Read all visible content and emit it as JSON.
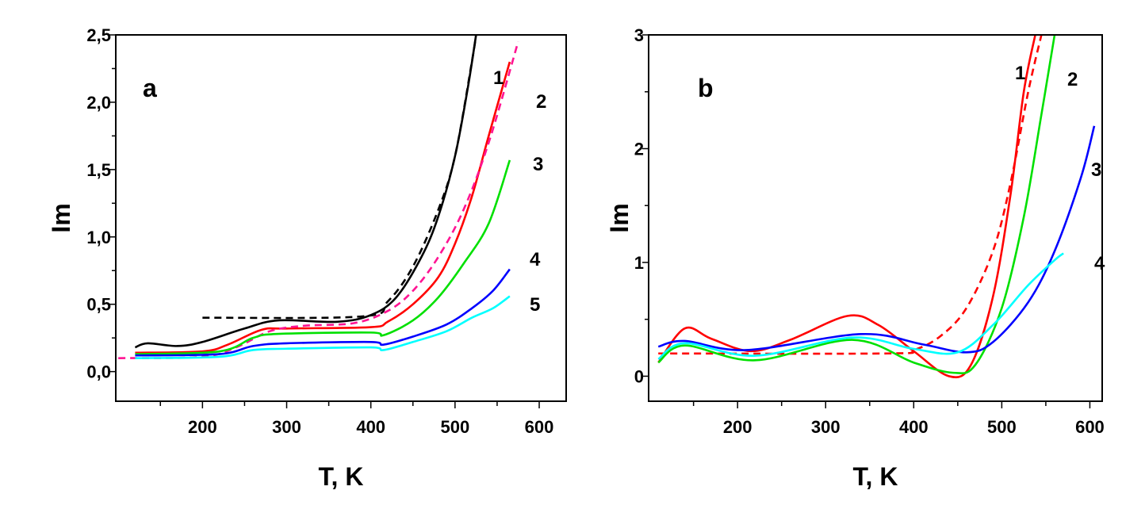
{
  "chart_data": [
    {
      "type": "line",
      "panel_label": "a",
      "xlabel": "T, K",
      "ylabel": "Im",
      "xlim": [
        97,
        632
      ],
      "ylim": [
        -0.22,
        2.5
      ],
      "xticks": [
        200,
        300,
        400,
        500,
        600
      ],
      "xtick_labels": [
        "200",
        "300",
        "400",
        "500",
        "600"
      ],
      "yticks": [
        0.0,
        0.5,
        1.0,
        1.5,
        2.0,
        2.5
      ],
      "ytick_labels": [
        "0,0",
        "0,5",
        "1,0",
        "1,5",
        "2,0",
        "2,5"
      ],
      "grid": false,
      "series": [
        {
          "label": "1",
          "color": "#000000",
          "style": "solid",
          "x": [
            120,
            135,
            170,
            200,
            250,
            290,
            360,
            400,
            430,
            460,
            480,
            500,
            515,
            525
          ],
          "y": [
            0.18,
            0.21,
            0.19,
            0.22,
            0.32,
            0.38,
            0.37,
            0.42,
            0.55,
            0.85,
            1.15,
            1.6,
            2.1,
            2.5
          ]
        },
        {
          "color": "#000000",
          "style": "dashed",
          "x": [
            200,
            390,
            420,
            450,
            480,
            500,
            520,
            525
          ],
          "y": [
            0.4,
            0.41,
            0.52,
            0.78,
            1.2,
            1.6,
            2.3,
            2.5
          ]
        },
        {
          "label": "2",
          "color": "#ff0000",
          "style": "solid",
          "x": [
            120,
            200,
            230,
            270,
            300,
            400,
            420,
            450,
            480,
            500,
            520,
            540,
            565
          ],
          "y": [
            0.14,
            0.15,
            0.2,
            0.31,
            0.32,
            0.33,
            0.37,
            0.5,
            0.7,
            0.95,
            1.3,
            1.75,
            2.3
          ]
        },
        {
          "color": "#ff1493",
          "style": "dashed",
          "x": [
            100,
            200,
            240,
            280,
            320,
            380,
            420,
            450,
            480,
            510,
            540,
            575
          ],
          "y": [
            0.1,
            0.11,
            0.18,
            0.3,
            0.34,
            0.36,
            0.45,
            0.6,
            0.85,
            1.2,
            1.7,
            2.45
          ]
        },
        {
          "label": "3",
          "color": "#00e000",
          "style": "solid",
          "x": [
            120,
            220,
            260,
            290,
            400,
            415,
            450,
            480,
            510,
            540,
            565
          ],
          "y": [
            0.13,
            0.15,
            0.25,
            0.28,
            0.29,
            0.27,
            0.38,
            0.55,
            0.8,
            1.1,
            1.57
          ]
        },
        {
          "label": "4",
          "color": "#0000ff",
          "style": "solid",
          "x": [
            120,
            220,
            260,
            300,
            400,
            415,
            450,
            490,
            520,
            545,
            565
          ],
          "y": [
            0.12,
            0.13,
            0.19,
            0.21,
            0.22,
            0.2,
            0.26,
            0.35,
            0.47,
            0.6,
            0.76
          ]
        },
        {
          "label": "5",
          "color": "#00ffff",
          "style": "solid",
          "x": [
            120,
            220,
            260,
            300,
            400,
            415,
            450,
            490,
            520,
            545,
            565
          ],
          "y": [
            0.1,
            0.11,
            0.16,
            0.17,
            0.18,
            0.16,
            0.22,
            0.3,
            0.4,
            0.47,
            0.56
          ]
        }
      ]
    },
    {
      "type": "line",
      "panel_label": "b",
      "xlabel": "T, K",
      "ylabel": "Im",
      "xlim": [
        99,
        614
      ],
      "ylim": [
        -0.22,
        3
      ],
      "xticks": [
        200,
        300,
        400,
        500,
        600
      ],
      "xtick_labels": [
        "200",
        "300",
        "400",
        "500",
        "600"
      ],
      "yticks": [
        0,
        1,
        2,
        3
      ],
      "ytick_labels": [
        "0",
        "1",
        "2",
        "3"
      ],
      "grid": false,
      "series": [
        {
          "label": "1",
          "color": "#ff0000",
          "style": "solid",
          "x": [
            110,
            140,
            170,
            215,
            260,
            325,
            360,
            400,
            440,
            465,
            490,
            510,
            525,
            538
          ],
          "y": [
            0.12,
            0.42,
            0.33,
            0.22,
            0.32,
            0.53,
            0.45,
            0.22,
            0.0,
            0.1,
            0.7,
            1.6,
            2.5,
            3.0
          ]
        },
        {
          "color": "#ff0000",
          "style": "dashed",
          "x": [
            110,
            370,
            400,
            430,
            460,
            490,
            510,
            530,
            545
          ],
          "y": [
            0.2,
            0.2,
            0.23,
            0.35,
            0.6,
            1.1,
            1.7,
            2.5,
            3.0
          ]
        },
        {
          "label": "2",
          "color": "#00e000",
          "style": "solid",
          "x": [
            110,
            140,
            220,
            330,
            400,
            445,
            470,
            500,
            525,
            545,
            560
          ],
          "y": [
            0.12,
            0.27,
            0.14,
            0.32,
            0.12,
            0.03,
            0.1,
            0.6,
            1.4,
            2.3,
            3.0
          ]
        },
        {
          "label": "3",
          "color": "#0000ff",
          "style": "solid",
          "x": [
            110,
            140,
            210,
            340,
            410,
            460,
            490,
            530,
            560,
            590,
            605
          ],
          "y": [
            0.26,
            0.31,
            0.23,
            0.37,
            0.28,
            0.21,
            0.3,
            0.65,
            1.1,
            1.75,
            2.2
          ]
        },
        {
          "label": "4",
          "color": "#00ffff",
          "style": "solid",
          "x": [
            110,
            140,
            220,
            330,
            400,
            450,
            490,
            530,
            560,
            570
          ],
          "y": [
            0.15,
            0.29,
            0.18,
            0.34,
            0.24,
            0.21,
            0.45,
            0.8,
            1.02,
            1.08
          ]
        }
      ]
    }
  ]
}
